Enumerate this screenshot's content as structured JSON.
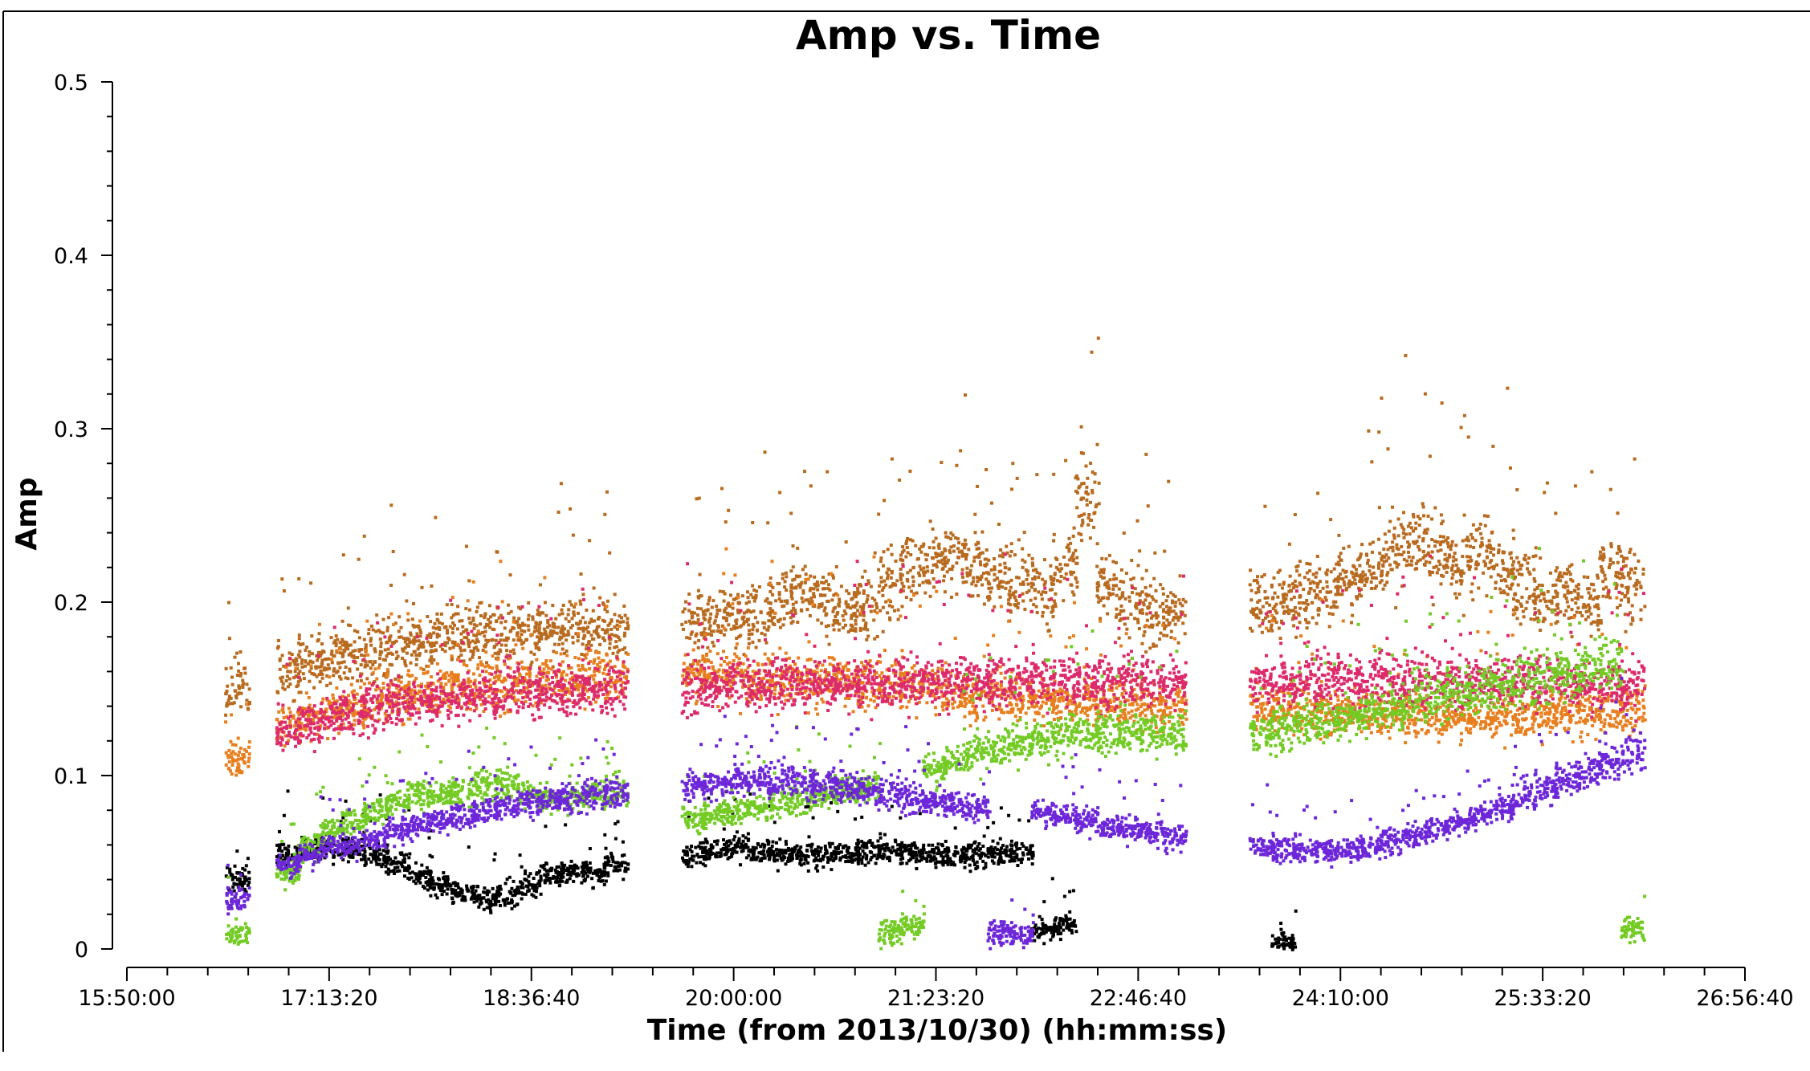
{
  "chart_data": {
    "type": "scatter",
    "title": "Amp vs. Time",
    "xlabel": "Time (from 2013/10/30) (hh:mm:ss)",
    "ylabel": "Amp",
    "x_unit": "hh:mm:ss",
    "xlim": [
      "15:50:00",
      "26:56:40"
    ],
    "ylim": [
      0,
      0.5
    ],
    "x_ticks": [
      "15:50:00",
      "17:13:20",
      "18:36:40",
      "20:00:00",
      "21:23:20",
      "22:46:40",
      "24:10:00",
      "25:33:20",
      "26:56:40"
    ],
    "y_ticks": [
      "0",
      "0.1",
      "0.2",
      "0.3",
      "0.4",
      "0.5"
    ],
    "grid": false,
    "legend": "none",
    "scans": [
      "16:35",
      "16:56",
      "17:05",
      "17:14",
      "17:23",
      "17:32",
      "17:41",
      "17:50",
      "17:59",
      "18:08",
      "18:17",
      "18:26",
      "18:35",
      "18:44",
      "18:53",
      "19:02",
      "19:11",
      "19:43",
      "19:52",
      "20:01",
      "20:10",
      "20:19",
      "20:28",
      "20:37",
      "20:46",
      "20:55",
      "21:04",
      "21:13",
      "21:22",
      "21:31",
      "21:40",
      "21:49",
      "21:58",
      "22:07",
      "22:16",
      "22:25",
      "22:34",
      "22:43",
      "22:52",
      "23:01",
      "23:37",
      "23:46",
      "23:55",
      "24:04",
      "24:13",
      "24:22",
      "24:31",
      "24:40",
      "24:49",
      "24:58",
      "25:07",
      "25:16",
      "25:25",
      "25:34",
      "25:43",
      "25:52",
      "26:01",
      "26:10"
    ],
    "series": [
      {
        "color": "#000000",
        "values": [
          0.04,
          0.055,
          0.058,
          0.06,
          0.058,
          0.055,
          0.05,
          0.042,
          0.037,
          0.033,
          0.03,
          0.032,
          0.038,
          0.043,
          0.045,
          0.045,
          0.05,
          0.055,
          0.058,
          0.06,
          0.058,
          0.056,
          0.055,
          0.055,
          0.056,
          0.057,
          0.057,
          0.056,
          0.055,
          0.055,
          0.055,
          0.056,
          0.056,
          0.012,
          0.015,
          null,
          null,
          null,
          null,
          null,
          null,
          0.005,
          null,
          null,
          null,
          null,
          null,
          null,
          null,
          null,
          null,
          null,
          null,
          null,
          null,
          null,
          null,
          null
        ]
      },
      {
        "color": "#b86a1e",
        "values": [
          0.15,
          0.16,
          0.165,
          0.168,
          0.17,
          0.172,
          0.175,
          0.178,
          0.18,
          0.182,
          0.183,
          0.183,
          0.185,
          0.186,
          0.187,
          0.188,
          0.185,
          0.19,
          0.19,
          0.192,
          0.195,
          0.2,
          0.205,
          0.2,
          0.195,
          0.2,
          0.21,
          0.22,
          0.225,
          0.23,
          0.22,
          0.215,
          0.21,
          0.205,
          0.22,
          0.26,
          0.21,
          0.2,
          0.195,
          0.195,
          0.2,
          0.2,
          0.205,
          0.21,
          0.215,
          0.22,
          0.23,
          0.24,
          0.23,
          0.22,
          0.23,
          0.22,
          0.21,
          0.2,
          0.205,
          0.2,
          0.22,
          0.21
        ]
      },
      {
        "color": "#e87f1f",
        "values": [
          0.11,
          0.13,
          0.135,
          0.138,
          0.14,
          0.142,
          0.145,
          0.148,
          0.15,
          0.152,
          0.153,
          0.153,
          0.155,
          0.155,
          0.156,
          0.158,
          0.158,
          0.16,
          0.16,
          0.159,
          0.158,
          0.157,
          0.156,
          0.155,
          0.155,
          0.154,
          0.153,
          0.152,
          0.15,
          0.149,
          0.148,
          0.147,
          0.146,
          0.145,
          0.144,
          0.143,
          0.142,
          0.141,
          0.14,
          0.14,
          0.14,
          0.139,
          0.138,
          0.138,
          0.137,
          0.137,
          0.136,
          0.136,
          0.135,
          0.135,
          0.135,
          0.136,
          0.136,
          0.137,
          0.137,
          0.137,
          0.138,
          0.138
        ]
      },
      {
        "color": "#dc2a6b",
        "values": [
          null,
          0.125,
          0.13,
          0.135,
          0.138,
          0.14,
          0.142,
          0.144,
          0.145,
          0.146,
          0.147,
          0.148,
          0.148,
          0.149,
          0.149,
          0.15,
          0.15,
          0.152,
          0.152,
          0.153,
          0.153,
          0.154,
          0.154,
          0.154,
          0.155,
          0.155,
          0.155,
          0.155,
          0.155,
          0.155,
          0.155,
          0.155,
          0.155,
          0.155,
          0.155,
          0.155,
          0.155,
          0.155,
          0.155,
          0.155,
          0.155,
          0.155,
          0.155,
          0.155,
          0.155,
          0.155,
          0.155,
          0.155,
          0.155,
          0.155,
          0.155,
          0.155,
          0.155,
          0.155,
          0.155,
          0.153,
          0.152,
          0.154
        ]
      },
      {
        "color": "#73cb24",
        "values": [
          0.01,
          0.045,
          0.06,
          0.07,
          0.075,
          0.08,
          0.085,
          0.09,
          0.09,
          0.092,
          0.095,
          0.095,
          0.09,
          0.088,
          0.088,
          0.09,
          0.09,
          0.075,
          0.078,
          0.08,
          0.082,
          0.085,
          0.088,
          0.09,
          0.092,
          0.095,
          0.01,
          0.015,
          0.105,
          0.11,
          0.115,
          0.118,
          0.12,
          0.122,
          0.125,
          0.125,
          0.125,
          0.125,
          0.125,
          0.125,
          0.125,
          0.128,
          0.13,
          0.132,
          0.135,
          0.138,
          0.14,
          0.142,
          0.145,
          0.148,
          0.15,
          0.152,
          0.155,
          0.158,
          0.16,
          0.162,
          0.165,
          0.012
        ]
      },
      {
        "color": "#6d27d9",
        "values": [
          0.03,
          0.05,
          0.055,
          0.06,
          0.062,
          0.065,
          0.07,
          0.072,
          0.075,
          0.078,
          0.08,
          0.082,
          0.085,
          0.087,
          0.088,
          0.09,
          0.09,
          0.095,
          0.097,
          0.098,
          0.098,
          0.097,
          0.096,
          0.095,
          0.094,
          0.092,
          0.09,
          0.088,
          0.086,
          0.084,
          0.082,
          0.01,
          0.01,
          0.08,
          0.078,
          0.075,
          0.072,
          0.07,
          0.068,
          0.065,
          0.06,
          0.058,
          0.057,
          0.057,
          0.058,
          0.06,
          0.063,
          0.066,
          0.07,
          0.074,
          0.078,
          0.082,
          0.088,
          0.093,
          0.098,
          0.103,
          0.108,
          0.113
        ]
      }
    ]
  }
}
